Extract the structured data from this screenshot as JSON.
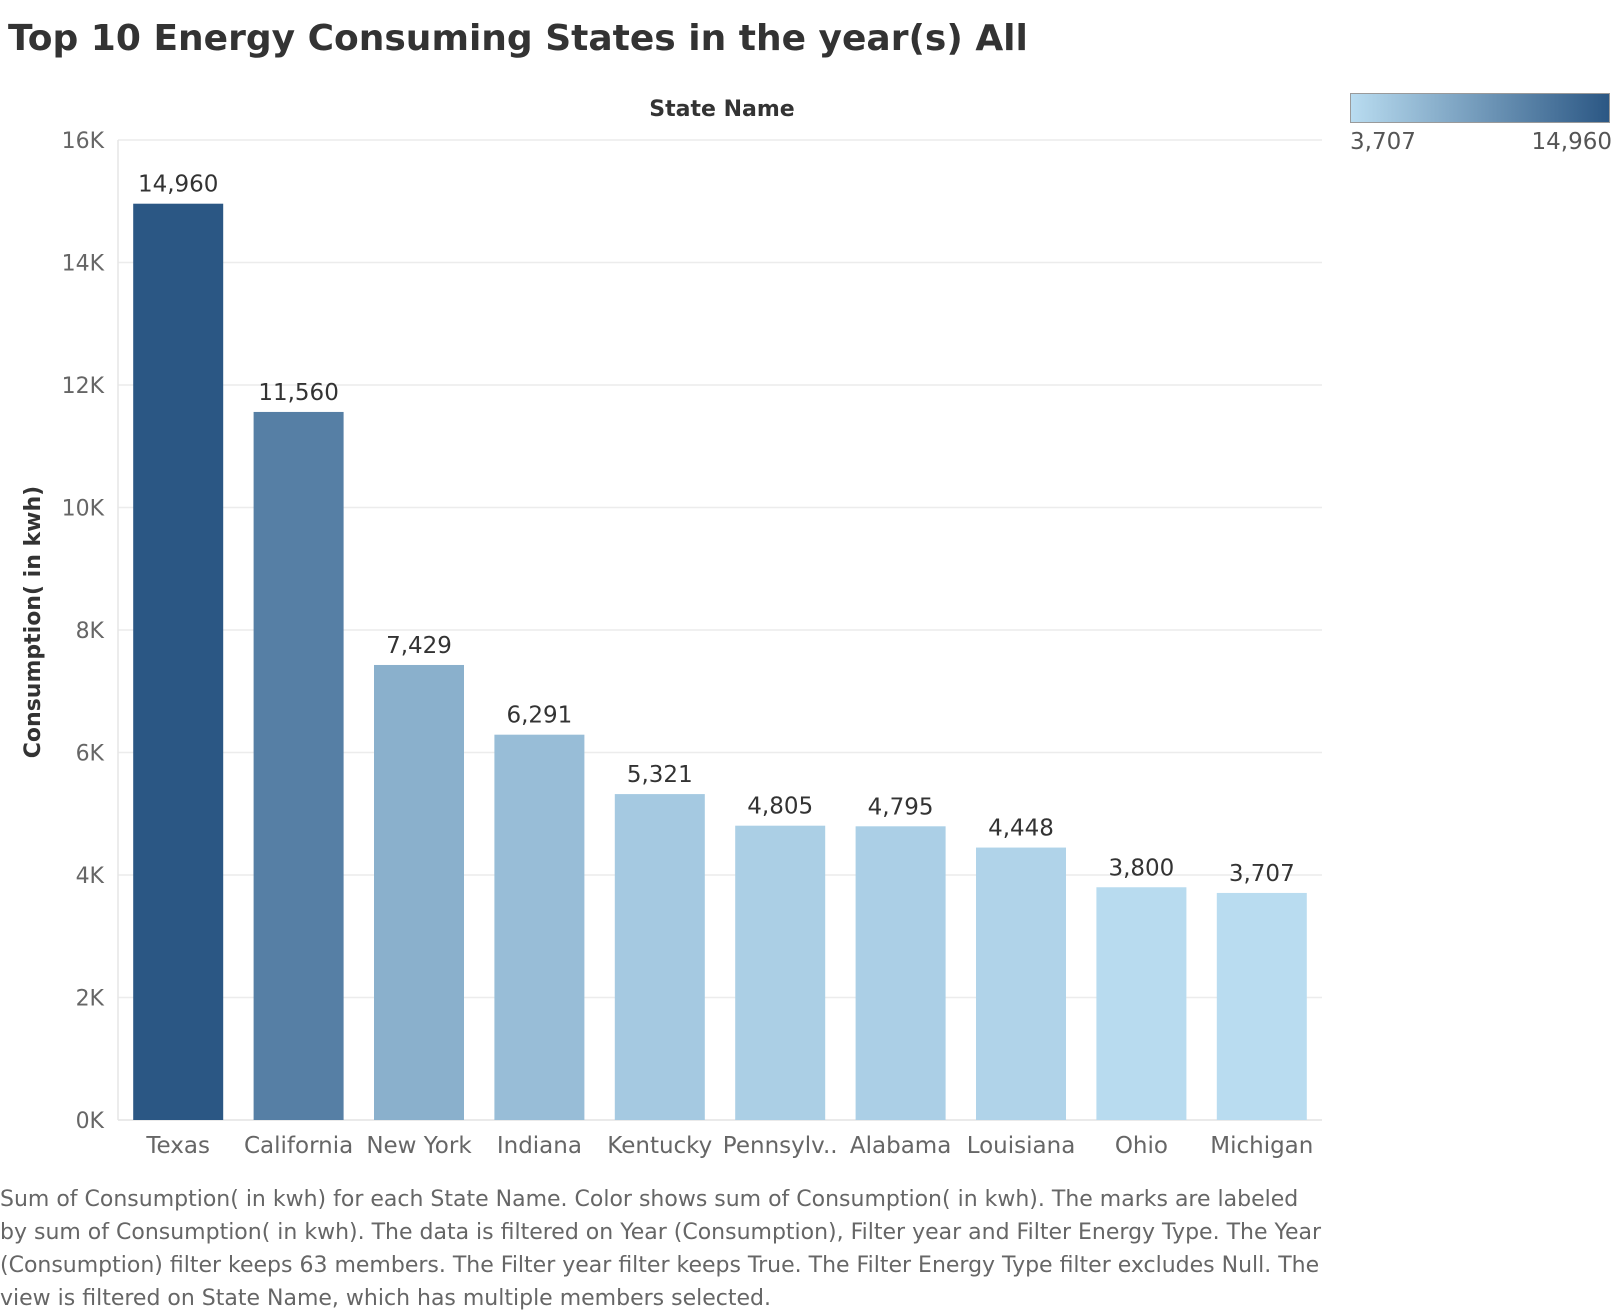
{
  "chart_data": {
    "type": "bar",
    "title": "Top 10 Energy Consuming States in the year(s) All",
    "column_header": "State Name",
    "ylabel": "Consumption( in kwh)",
    "xlabel": "",
    "ylim": [
      0,
      16000
    ],
    "y_ticks": [
      {
        "value": 0,
        "label": "0K"
      },
      {
        "value": 2000,
        "label": "2K"
      },
      {
        "value": 4000,
        "label": "4K"
      },
      {
        "value": 6000,
        "label": "6K"
      },
      {
        "value": 8000,
        "label": "8K"
      },
      {
        "value": 10000,
        "label": "10K"
      },
      {
        "value": 12000,
        "label": "12K"
      },
      {
        "value": 14000,
        "label": "14K"
      },
      {
        "value": 16000,
        "label": "16K"
      }
    ],
    "categories": [
      "Texas",
      "California",
      "New York",
      "Indiana",
      "Kentucky",
      "Pennsylv..",
      "Alabama",
      "Louisiana",
      "Ohio",
      "Michigan"
    ],
    "values": [
      14960,
      11560,
      7429,
      6291,
      5321,
      4805,
      4795,
      4448,
      3800,
      3707
    ],
    "value_labels": [
      "14,960",
      "11,560",
      "7,429",
      "6,291",
      "5,321",
      "4,805",
      "4,795",
      "4,448",
      "3,800",
      "3,707"
    ],
    "grid": true,
    "legend": {
      "placement": "top-right",
      "type": "color-gradient",
      "min_label": "3,707",
      "max_label": "14,960",
      "min_color": "#b9dcf0",
      "max_color": "#2b5784"
    },
    "caption": "Sum of Consumption( in kwh) for each State Name.  Color shows sum of Consumption( in kwh).  The marks are labeled by sum of Consumption( in kwh). The data is filtered on Year (Consumption), Filter year and Filter Energy Type. The Year (Consumption) filter keeps 63 members. The Filter year filter keeps True. The Filter Energy Type filter excludes Null. The view is filtered on State Name, which has multiple members selected."
  }
}
